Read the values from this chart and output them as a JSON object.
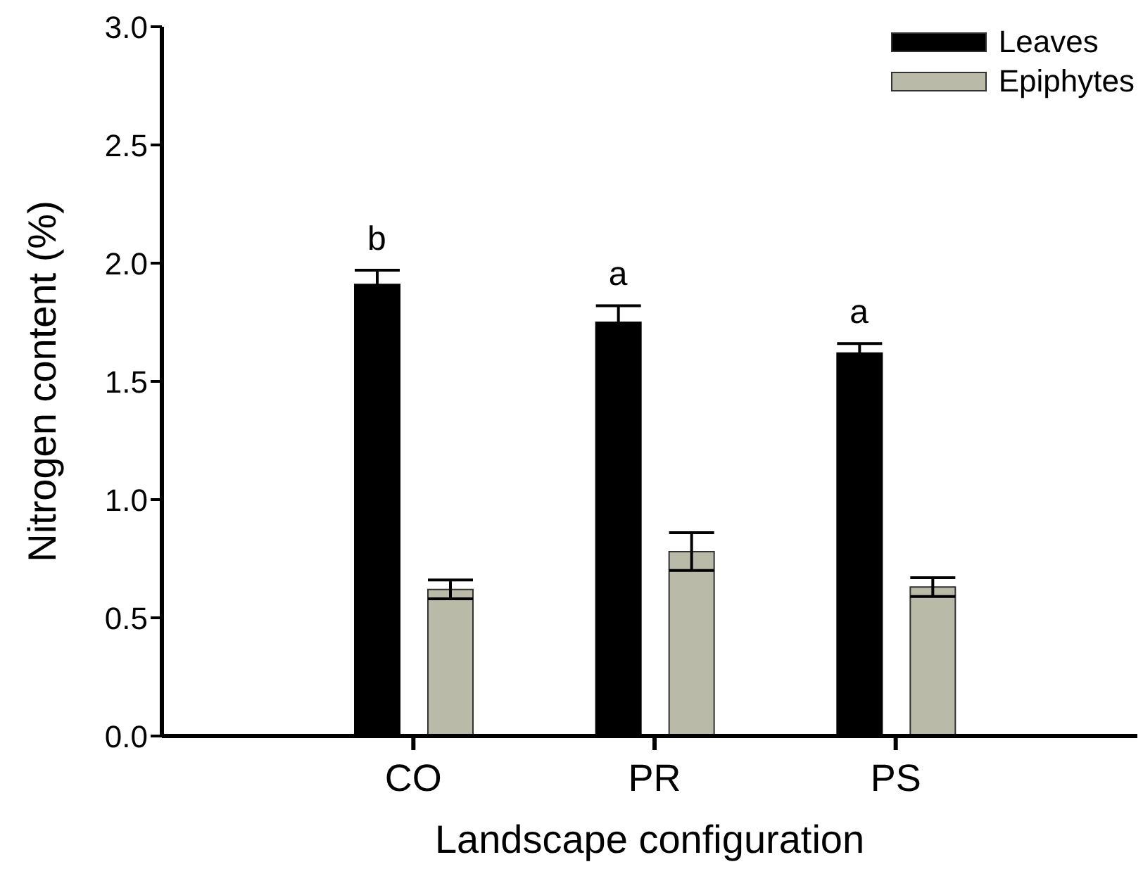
{
  "chart_data": {
    "type": "bar",
    "xlabel": "Landscape configuration",
    "ylabel": "Nitrogen content (%)",
    "categories": [
      "CO",
      "PR",
      "PS"
    ],
    "series": [
      {
        "name": "Leaves",
        "color": "#000000",
        "values": [
          1.91,
          1.75,
          1.62
        ],
        "errors": [
          0.06,
          0.07,
          0.04
        ]
      },
      {
        "name": "Epiphytes",
        "color": "#b9baa8",
        "values": [
          0.62,
          0.78,
          0.63
        ],
        "errors": [
          0.04,
          0.08,
          0.04
        ]
      }
    ],
    "ylim": [
      0,
      3
    ],
    "yticks": [
      {
        "value": 0,
        "label": "0.0"
      },
      {
        "value": 0.5,
        "label": "0.5"
      },
      {
        "value": 1,
        "label": "1.0"
      },
      {
        "value": 1.5,
        "label": "1.5"
      },
      {
        "value": 2,
        "label": "2.0"
      },
      {
        "value": 2.5,
        "label": "2.5"
      },
      {
        "value": 3,
        "label": "3.0"
      }
    ],
    "annotations": [
      "b",
      "a",
      "a"
    ],
    "legend": "top right",
    "grid": false
  }
}
